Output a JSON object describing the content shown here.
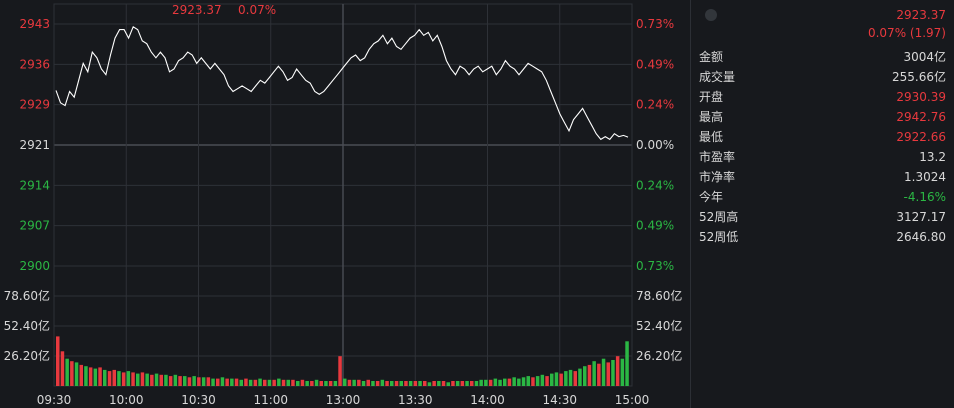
{
  "quote": {
    "price": "2923.37",
    "change_line": "0.07% (1.97)",
    "top_price": "2923.37",
    "top_pct": "0.07%"
  },
  "stats": [
    {
      "label": "金额",
      "value": "3004亿",
      "color": "default"
    },
    {
      "label": "成交量",
      "value": "255.66亿",
      "color": "default"
    },
    {
      "label": "开盘",
      "value": "2930.39",
      "color": "red"
    },
    {
      "label": "最高",
      "value": "2942.76",
      "color": "red"
    },
    {
      "label": "最低",
      "value": "2922.66",
      "color": "red"
    },
    {
      "label": "市盈率",
      "value": "13.2",
      "color": "default"
    },
    {
      "label": "市净率",
      "value": "1.3024",
      "color": "default"
    },
    {
      "label": "今年",
      "value": "-4.16%",
      "color": "green"
    },
    {
      "label": "52周高",
      "value": "3127.17",
      "color": "default"
    },
    {
      "label": "52周低",
      "value": "2646.80",
      "color": "default"
    }
  ],
  "colors": {
    "up": "#e8393e",
    "down": "#2bb744",
    "neutral": "#d8d8d8",
    "grid": "#2e3137",
    "line": "#ffffff"
  },
  "chart_data": {
    "type": "line",
    "title": "",
    "xlabel": "",
    "ylabel": "",
    "x_ticks": [
      "09:30",
      "10:00",
      "10:30",
      "11:00",
      "13:00",
      "13:30",
      "14:00",
      "14:30",
      "15:00"
    ],
    "price_ticks_left": [
      "2943",
      "2936",
      "2929",
      "2921",
      "2914",
      "2907",
      "2900"
    ],
    "price_tick_colors": [
      "red",
      "red",
      "red",
      "neutral",
      "green",
      "green",
      "green"
    ],
    "pct_ticks_right": [
      "0.73%",
      "0.49%",
      "0.24%",
      "0.00%",
      "0.24%",
      "0.49%",
      "0.73%"
    ],
    "volume_ticks_left": [
      "78.60亿",
      "52.40亿",
      "26.20亿"
    ],
    "volume_ticks_right": [
      "78.60亿",
      "52.40亿",
      "26.20亿"
    ],
    "ylim": [
      2900,
      2943
    ],
    "prev_close": 2921,
    "volume_ylim": [
      0,
      104.8
    ],
    "series": [
      {
        "values": [
          2931.2,
          2929.0,
          2928.5,
          2931.0,
          2930.0,
          2933.0,
          2936.0,
          2934.5,
          2938.0,
          2937.0,
          2935.0,
          2934.0,
          2937.5,
          2940.5,
          2942.0,
          2942.0,
          2940.5,
          2942.5,
          2942.0,
          2940.0,
          2939.5,
          2938.0,
          2937.0,
          2938.0,
          2937.0,
          2934.5,
          2935.0,
          2936.5,
          2937.0,
          2938.0,
          2937.5,
          2936.0,
          2937.0,
          2936.0,
          2935.0,
          2936.0,
          2935.0,
          2934.0,
          2932.0,
          2931.0,
          2931.5,
          2932.0,
          2931.5,
          2931.0,
          2932.0,
          2933.0,
          2932.5,
          2933.5,
          2934.5,
          2935.5,
          2934.5,
          2933.0,
          2933.5,
          2935.0,
          2934.0,
          2933.0,
          2932.5,
          2931.0,
          2930.5,
          2931.0,
          2932.0,
          2933.0,
          2934.0,
          2935.0,
          2936.0,
          2937.0,
          2937.5,
          2936.5,
          2937.0,
          2938.5,
          2939.5,
          2940.0,
          2941.0,
          2939.5,
          2940.5,
          2939.0,
          2938.5,
          2939.5,
          2940.5,
          2941.0,
          2942.0,
          2941.0,
          2941.5,
          2940.0,
          2941.0,
          2939.0,
          2936.5,
          2935.0,
          2934.0,
          2935.5,
          2935.0,
          2934.0,
          2935.0,
          2935.5,
          2934.5,
          2935.0,
          2935.5,
          2934.0,
          2935.0,
          2936.5,
          2935.5,
          2935.0,
          2934.0,
          2935.0,
          2936.0,
          2935.5,
          2935.0,
          2934.5,
          2933.0,
          2931.0,
          2929.0,
          2927.0,
          2925.5,
          2924.0,
          2926.0,
          2927.0,
          2928.0,
          2926.5,
          2925.0,
          2923.5,
          2922.5,
          2923.0,
          2922.5,
          2923.5,
          2923.0,
          2923.2,
          2922.9
        ]
      }
    ],
    "volume": [
      {
        "v": 40,
        "c": "red"
      },
      {
        "v": 28,
        "c": "red"
      },
      {
        "v": 22,
        "c": "green"
      },
      {
        "v": 20,
        "c": "red"
      },
      {
        "v": 19,
        "c": "green"
      },
      {
        "v": 17,
        "c": "red"
      },
      {
        "v": 16,
        "c": "green"
      },
      {
        "v": 15,
        "c": "red"
      },
      {
        "v": 14,
        "c": "green"
      },
      {
        "v": 15,
        "c": "red"
      },
      {
        "v": 13,
        "c": "green"
      },
      {
        "v": 12,
        "c": "red"
      },
      {
        "v": 13,
        "c": "red"
      },
      {
        "v": 12,
        "c": "green"
      },
      {
        "v": 11,
        "c": "red"
      },
      {
        "v": 12,
        "c": "green"
      },
      {
        "v": 11,
        "c": "red"
      },
      {
        "v": 10,
        "c": "green"
      },
      {
        "v": 11,
        "c": "red"
      },
      {
        "v": 10,
        "c": "green"
      },
      {
        "v": 9,
        "c": "red"
      },
      {
        "v": 10,
        "c": "green"
      },
      {
        "v": 9,
        "c": "red"
      },
      {
        "v": 9,
        "c": "green"
      },
      {
        "v": 8,
        "c": "red"
      },
      {
        "v": 9,
        "c": "green"
      },
      {
        "v": 8,
        "c": "red"
      },
      {
        "v": 8,
        "c": "green"
      },
      {
        "v": 7,
        "c": "red"
      },
      {
        "v": 8,
        "c": "green"
      },
      {
        "v": 7,
        "c": "red"
      },
      {
        "v": 7,
        "c": "green"
      },
      {
        "v": 7,
        "c": "red"
      },
      {
        "v": 6,
        "c": "green"
      },
      {
        "v": 6,
        "c": "red"
      },
      {
        "v": 7,
        "c": "green"
      },
      {
        "v": 6,
        "c": "red"
      },
      {
        "v": 6,
        "c": "green"
      },
      {
        "v": 6,
        "c": "red"
      },
      {
        "v": 5,
        "c": "green"
      },
      {
        "v": 6,
        "c": "red"
      },
      {
        "v": 5,
        "c": "green"
      },
      {
        "v": 5,
        "c": "red"
      },
      {
        "v": 6,
        "c": "green"
      },
      {
        "v": 5,
        "c": "red"
      },
      {
        "v": 5,
        "c": "green"
      },
      {
        "v": 5,
        "c": "red"
      },
      {
        "v": 6,
        "c": "green"
      },
      {
        "v": 5,
        "c": "red"
      },
      {
        "v": 5,
        "c": "green"
      },
      {
        "v": 5,
        "c": "red"
      },
      {
        "v": 4,
        "c": "green"
      },
      {
        "v": 5,
        "c": "red"
      },
      {
        "v": 4,
        "c": "green"
      },
      {
        "v": 4,
        "c": "red"
      },
      {
        "v": 5,
        "c": "green"
      },
      {
        "v": 4,
        "c": "red"
      },
      {
        "v": 4,
        "c": "green"
      },
      {
        "v": 4,
        "c": "red"
      },
      {
        "v": 4,
        "c": "green"
      },
      {
        "v": 24,
        "c": "red"
      },
      {
        "v": 6,
        "c": "green"
      },
      {
        "v": 5,
        "c": "red"
      },
      {
        "v": 5,
        "c": "green"
      },
      {
        "v": 5,
        "c": "red"
      },
      {
        "v": 4,
        "c": "green"
      },
      {
        "v": 5,
        "c": "red"
      },
      {
        "v": 4,
        "c": "green"
      },
      {
        "v": 4,
        "c": "red"
      },
      {
        "v": 5,
        "c": "green"
      },
      {
        "v": 4,
        "c": "red"
      },
      {
        "v": 4,
        "c": "green"
      },
      {
        "v": 4,
        "c": "red"
      },
      {
        "v": 4,
        "c": "green"
      },
      {
        "v": 4,
        "c": "red"
      },
      {
        "v": 4,
        "c": "green"
      },
      {
        "v": 4,
        "c": "red"
      },
      {
        "v": 4,
        "c": "green"
      },
      {
        "v": 4,
        "c": "red"
      },
      {
        "v": 3,
        "c": "green"
      },
      {
        "v": 4,
        "c": "red"
      },
      {
        "v": 4,
        "c": "green"
      },
      {
        "v": 4,
        "c": "red"
      },
      {
        "v": 3,
        "c": "green"
      },
      {
        "v": 4,
        "c": "red"
      },
      {
        "v": 4,
        "c": "green"
      },
      {
        "v": 4,
        "c": "red"
      },
      {
        "v": 4,
        "c": "green"
      },
      {
        "v": 4,
        "c": "red"
      },
      {
        "v": 4,
        "c": "green"
      },
      {
        "v": 5,
        "c": "green"
      },
      {
        "v": 5,
        "c": "green"
      },
      {
        "v": 5,
        "c": "red"
      },
      {
        "v": 6,
        "c": "green"
      },
      {
        "v": 5,
        "c": "green"
      },
      {
        "v": 6,
        "c": "green"
      },
      {
        "v": 6,
        "c": "red"
      },
      {
        "v": 7,
        "c": "green"
      },
      {
        "v": 6,
        "c": "green"
      },
      {
        "v": 7,
        "c": "green"
      },
      {
        "v": 8,
        "c": "green"
      },
      {
        "v": 7,
        "c": "red"
      },
      {
        "v": 8,
        "c": "green"
      },
      {
        "v": 9,
        "c": "green"
      },
      {
        "v": 8,
        "c": "red"
      },
      {
        "v": 10,
        "c": "green"
      },
      {
        "v": 11,
        "c": "green"
      },
      {
        "v": 10,
        "c": "red"
      },
      {
        "v": 12,
        "c": "green"
      },
      {
        "v": 13,
        "c": "green"
      },
      {
        "v": 12,
        "c": "red"
      },
      {
        "v": 14,
        "c": "green"
      },
      {
        "v": 16,
        "c": "green"
      },
      {
        "v": 17,
        "c": "red"
      },
      {
        "v": 20,
        "c": "green"
      },
      {
        "v": 18,
        "c": "red"
      },
      {
        "v": 22,
        "c": "green"
      },
      {
        "v": 19,
        "c": "red"
      },
      {
        "v": 21,
        "c": "green"
      },
      {
        "v": 24,
        "c": "red"
      },
      {
        "v": 22,
        "c": "green"
      },
      {
        "v": 36,
        "c": "green"
      }
    ]
  }
}
